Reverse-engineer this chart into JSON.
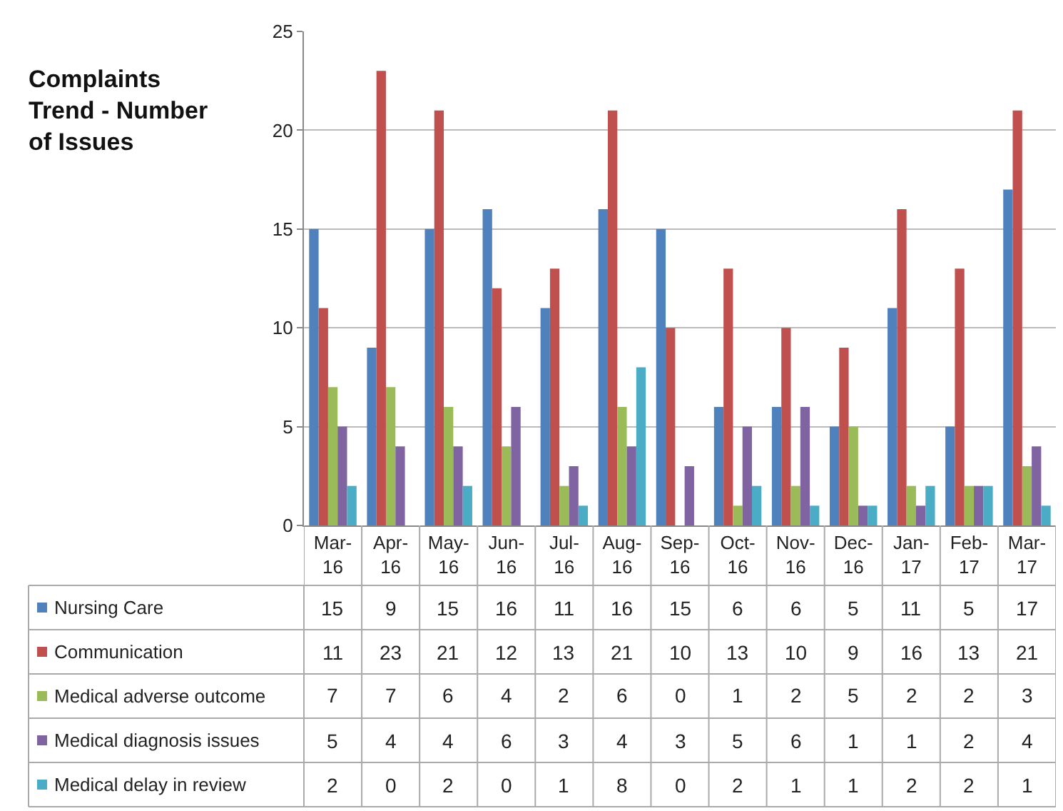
{
  "chart_data": {
    "type": "bar",
    "title": "Complaints Trend - Number of Issues",
    "categories": [
      "Mar-16",
      "Apr-16",
      "May-16",
      "Jun-16",
      "Jul-16",
      "Aug-16",
      "Sep-16",
      "Oct-16",
      "Nov-16",
      "Dec-16",
      "Jan-17",
      "Feb-17",
      "Mar-17"
    ],
    "series": [
      {
        "name": "Nursing Care",
        "color": "#4f81bd",
        "values": [
          15,
          9,
          15,
          16,
          11,
          16,
          15,
          6,
          6,
          5,
          11,
          5,
          17
        ]
      },
      {
        "name": "Communication",
        "color": "#c0504d",
        "values": [
          11,
          23,
          21,
          12,
          13,
          21,
          10,
          13,
          10,
          9,
          16,
          13,
          21
        ]
      },
      {
        "name": "Medical adverse outcome",
        "color": "#9bbb59",
        "values": [
          7,
          7,
          6,
          4,
          2,
          6,
          0,
          1,
          2,
          5,
          2,
          2,
          3
        ]
      },
      {
        "name": "Medical diagnosis issues",
        "color": "#8064a2",
        "values": [
          5,
          4,
          4,
          6,
          3,
          4,
          3,
          5,
          6,
          1,
          1,
          2,
          4
        ]
      },
      {
        "name": "Medical delay in review",
        "color": "#4bacc6",
        "values": [
          2,
          0,
          2,
          0,
          1,
          8,
          0,
          2,
          1,
          1,
          2,
          2,
          1
        ]
      }
    ],
    "ylim": [
      0,
      25
    ],
    "yticks": [
      0,
      5,
      10,
      15,
      20,
      25
    ],
    "grid": "y",
    "data_labels": true,
    "legend": "bottom left"
  }
}
